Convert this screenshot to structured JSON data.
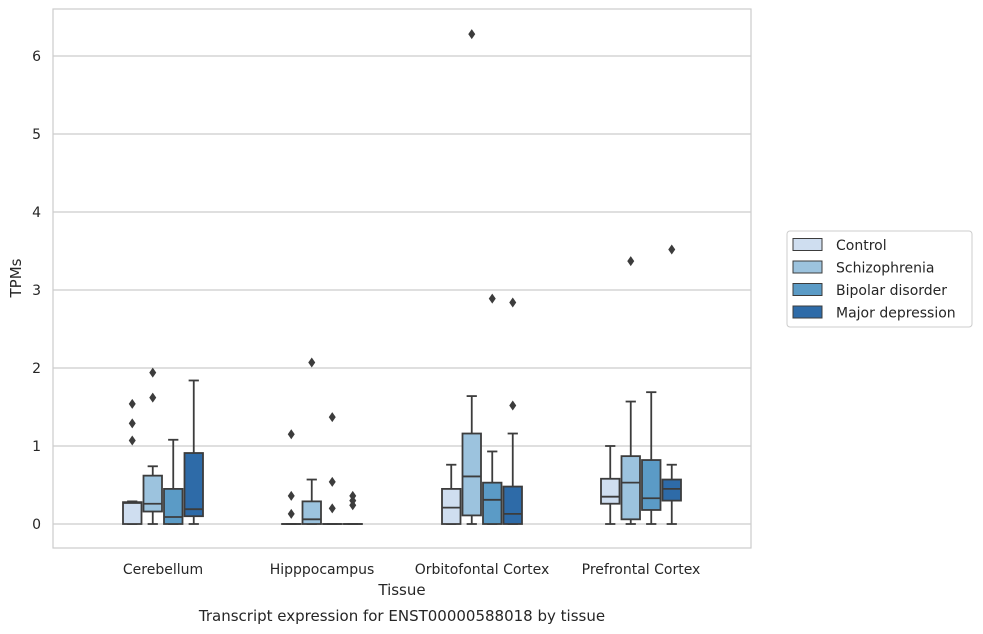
{
  "chart_data": {
    "type": "boxplot",
    "caption": "Transcript expression for ENST00000588018 by tissue",
    "xlabel": "Tissue",
    "ylabel": "TPMs",
    "ylim": [
      -0.3,
      6.6
    ],
    "yticks": [
      0,
      1,
      2,
      3,
      4,
      5,
      6
    ],
    "grid": "horizontal",
    "legend_position": "right",
    "categories": [
      "Cerebellum",
      "Hipppocampus",
      "Orbitofontal Cortex",
      "Prefrontal Cortex"
    ],
    "series": [
      {
        "name": "Control",
        "color": "#cfdef0",
        "boxes": [
          {
            "min": 0,
            "q1": 0,
            "median": 0.27,
            "q3": 0.28,
            "max": 0.29,
            "outliers": [
              1.07,
              1.29,
              1.54
            ]
          },
          {
            "min": 0,
            "q1": 0,
            "median": 0,
            "q3": 0,
            "max": 0,
            "outliers": [
              0.13,
              0.36,
              1.15
            ]
          },
          {
            "min": 0,
            "q1": 0,
            "median": 0.21,
            "q3": 0.45,
            "max": 0.76,
            "outliers": []
          },
          {
            "min": 0,
            "q1": 0.26,
            "median": 0.35,
            "q3": 0.58,
            "max": 1.0,
            "outliers": []
          }
        ]
      },
      {
        "name": "Schizophrenia",
        "color": "#9cc3de",
        "boxes": [
          {
            "min": 0,
            "q1": 0.16,
            "median": 0.26,
            "q3": 0.62,
            "max": 0.74,
            "outliers": [
              1.62,
              1.94
            ]
          },
          {
            "min": 0,
            "q1": 0,
            "median": 0.06,
            "q3": 0.29,
            "max": 0.57,
            "outliers": [
              2.07
            ]
          },
          {
            "min": 0,
            "q1": 0.11,
            "median": 0.61,
            "q3": 1.16,
            "max": 1.64,
            "outliers": [
              6.28
            ]
          },
          {
            "min": 0,
            "q1": 0.06,
            "median": 0.53,
            "q3": 0.87,
            "max": 1.57,
            "outliers": [
              3.37
            ]
          }
        ]
      },
      {
        "name": "Bipolar disorder",
        "color": "#5b9bc6",
        "boxes": [
          {
            "min": 0,
            "q1": 0,
            "median": 0.09,
            "q3": 0.45,
            "max": 1.08,
            "outliers": []
          },
          {
            "min": 0,
            "q1": 0,
            "median": 0,
            "q3": 0,
            "max": 0,
            "outliers": [
              0.2,
              0.54,
              1.37
            ]
          },
          {
            "min": 0,
            "q1": 0,
            "median": 0.31,
            "q3": 0.53,
            "max": 0.93,
            "outliers": [
              2.89
            ]
          },
          {
            "min": 0,
            "q1": 0.18,
            "median": 0.33,
            "q3": 0.82,
            "max": 1.69,
            "outliers": []
          }
        ]
      },
      {
        "name": "Major depression",
        "color": "#2e6ba8",
        "boxes": [
          {
            "min": 0,
            "q1": 0.1,
            "median": 0.19,
            "q3": 0.91,
            "max": 1.84,
            "outliers": []
          },
          {
            "min": 0,
            "q1": 0,
            "median": 0,
            "q3": 0,
            "max": 0,
            "outliers": [
              0.24,
              0.3,
              0.36
            ]
          },
          {
            "min": 0,
            "q1": 0,
            "median": 0.13,
            "q3": 0.48,
            "max": 1.16,
            "outliers": [
              1.52,
              2.84
            ]
          },
          {
            "min": 0,
            "q1": 0.3,
            "median": 0.45,
            "q3": 0.57,
            "max": 0.76,
            "outliers": [
              3.52
            ]
          }
        ]
      }
    ]
  }
}
